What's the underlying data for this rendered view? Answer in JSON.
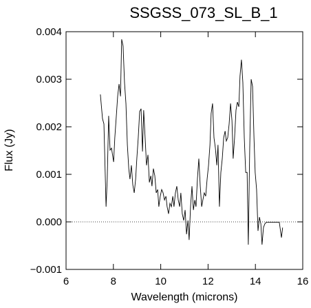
{
  "chart_data": {
    "type": "line",
    "title": "SSGSS_073_SL_B_1",
    "x_label": "Wavelength (microns)",
    "y_label": "Flux (Jy)",
    "xlim": [
      6,
      16
    ],
    "xticks": [
      6,
      8,
      10,
      12,
      14,
      16
    ],
    "ylim": [
      -0.001,
      0.004
    ],
    "yticks": [
      {
        "value": -0.001,
        "label": "−0.001"
      },
      {
        "value": 0,
        "label": "0.000"
      },
      {
        "value": 0.001,
        "label": "0.001"
      },
      {
        "value": 0.002,
        "label": "0.002"
      },
      {
        "value": 0.003,
        "label": "0.003"
      },
      {
        "value": 0.004,
        "label": "0.004"
      }
    ],
    "zero_line": true,
    "series": [
      {
        "color": "#000000",
        "x": [
          7.45,
          7.54,
          7.6,
          7.69,
          7.74,
          7.8,
          7.86,
          7.92,
          8.01,
          8.06,
          8.12,
          8.18,
          8.24,
          8.3,
          8.35,
          8.41,
          8.47,
          8.53,
          8.59,
          8.65,
          8.7,
          8.76,
          8.82,
          8.88,
          8.94,
          8.99,
          9.05,
          9.11,
          9.17,
          9.23,
          9.28,
          9.34,
          9.4,
          9.46,
          9.52,
          9.58,
          9.63,
          9.69,
          9.75,
          9.81,
          9.87,
          9.92,
          9.98,
          10.04,
          10.1,
          10.16,
          10.22,
          10.27,
          10.33,
          10.39,
          10.45,
          10.51,
          10.56,
          10.62,
          10.68,
          10.74,
          10.8,
          10.85,
          10.91,
          10.97,
          11.03,
          11.09,
          11.15,
          11.2,
          11.26,
          11.32,
          11.38,
          11.44,
          11.49,
          11.55,
          11.61,
          11.67,
          11.73,
          11.78,
          11.84,
          11.9,
          11.96,
          12.02,
          12.08,
          12.13,
          12.19,
          12.25,
          12.31,
          12.37,
          12.42,
          12.48,
          12.54,
          12.6,
          12.66,
          12.72,
          12.77,
          12.83,
          12.89,
          12.95,
          13.01,
          13.06,
          13.12,
          13.18,
          13.24,
          13.3,
          13.35,
          13.41,
          13.47,
          13.53,
          13.59,
          13.65,
          13.7,
          13.76,
          13.82,
          13.88,
          13.94,
          13.99,
          14.05,
          14.11,
          14.17,
          14.23,
          14.28,
          14.34,
          14.4,
          14.46,
          14.69,
          14.92,
          15.01,
          15.1,
          15.15
        ],
        "values": [
          0.00268,
          0.00217,
          0.00206,
          0.00032,
          0.0009,
          0.00223,
          0.00151,
          0.00155,
          0.00126,
          0.00177,
          0.0022,
          0.00264,
          0.0029,
          0.00264,
          0.00384,
          0.0037,
          0.00293,
          0.00249,
          0.00162,
          0.00112,
          0.0009,
          0.00119,
          0.00078,
          0.00061,
          0.0009,
          0.00133,
          0.00177,
          0.00232,
          0.00238,
          0.00148,
          0.00235,
          0.00177,
          0.00119,
          0.00141,
          0.00083,
          0.00097,
          0.00075,
          0.00112,
          0.00097,
          0.00061,
          0.00068,
          0.00032,
          0.00054,
          0.00068,
          0.00061,
          0.00046,
          0.00054,
          0.00032,
          0.00017,
          0.00039,
          0.00032,
          0.00054,
          0.00032,
          0.00061,
          0.00075,
          0.00046,
          0.00032,
          0.00061,
          0.00017,
          3e-05,
          0.00025,
          -0.00026,
          3e-05,
          -0.00038,
          0.00032,
          0.00075,
          0.00025,
          0.00046,
          0.00032,
          0.0009,
          0.00133,
          0.00075,
          0.00032,
          0.00046,
          0.00061,
          0.00054,
          0.0009,
          0.00119,
          0.00162,
          0.00228,
          0.00249,
          0.00177,
          0.00155,
          0.00119,
          0.00162,
          0.00032,
          0.00104,
          0.00133,
          0.00177,
          0.00191,
          0.0017,
          0.00177,
          0.00206,
          0.00249,
          0.00213,
          0.00133,
          0.00177,
          0.00235,
          0.00252,
          0.00242,
          0.00307,
          0.00341,
          0.00293,
          0.00177,
          0.00104,
          0.00104,
          -0.00048,
          0.00155,
          0.003,
          0.00285,
          0.00177,
          0.00104,
          0.00068,
          -0.00019,
          0.0001,
          -4e-05,
          -0.00048,
          -0.00012,
          -4e-05,
          -1e-05,
          -1e-05,
          -1e-05,
          -1e-05,
          -0.00033,
          -0.00012
        ]
      }
    ]
  }
}
